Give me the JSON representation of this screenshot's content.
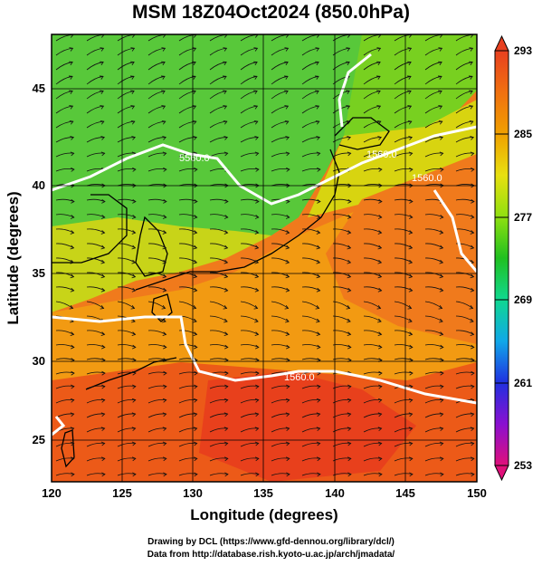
{
  "title": "MSM 18Z04Oct2024 (850.0hPa)",
  "xlabel": "Longitude (degrees)",
  "ylabel": "Latitude  (degrees)",
  "xticks": [
    "120",
    "125",
    "130",
    "135",
    "140",
    "145",
    "150"
  ],
  "yticks": [
    "25",
    "30",
    "35",
    "40",
    "45"
  ],
  "colorbar": {
    "labels": [
      "293",
      "285",
      "277",
      "269",
      "261",
      "253"
    ],
    "min": 253,
    "max": 293,
    "colors": [
      "#e0107a",
      "#8a10d0",
      "#2030e0",
      "#10a8e8",
      "#10d890",
      "#20c020",
      "#90e010",
      "#e8e010",
      "#f0a000",
      "#f07010",
      "#e84020"
    ]
  },
  "contour_labels": [
    "5560.0",
    "1560.0",
    "1560.0",
    "1560.0"
  ],
  "credit": {
    "line1": "Drawing by DCL (https://www.gfd-dennou.org/library/dcl/)",
    "line2": "Data from http://database.rish.kyoto-u.ac.jp/arch/jmadata/"
  },
  "chart_data": {
    "type": "heatmap",
    "title": "MSM 18Z04Oct2024 (850.0hPa)",
    "xlabel": "Longitude (degrees)",
    "ylabel": "Latitude  (degrees)",
    "xlim": [
      120,
      150
    ],
    "ylim": [
      22.5,
      48
    ],
    "color_range": [
      253,
      293
    ],
    "overlays": [
      "streamlines",
      "geopotential height contours"
    ],
    "grid": true
  }
}
